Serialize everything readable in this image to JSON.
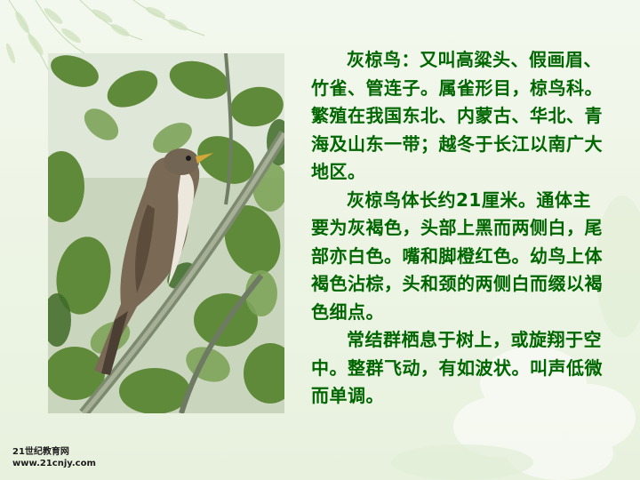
{
  "paragraphs": [
    "灰椋鸟：又叫高粱头、假画眉、竹雀、管连子。属雀形目，椋鸟科。繁殖在我国东北、内蒙古、华北、青海及山东一带；越冬于长江以南广大地区。",
    "灰椋鸟体长约21厘米。通体主要为灰褐色，头部上黑而两侧白，尾部亦白色。嘴和脚橙红色。幼鸟上体褐色沾棕，头和颈的两侧白而缀以褐色细点。",
    "常结群栖息于树上，或旋翔于空中。整群飞动，有如波状。叫声低微而单调。"
  ],
  "watermark": {
    "line1": "21世纪教育网",
    "line2": "www.21cnjy.com"
  },
  "colors": {
    "text": "#006600",
    "background": "#f0f6ea"
  }
}
